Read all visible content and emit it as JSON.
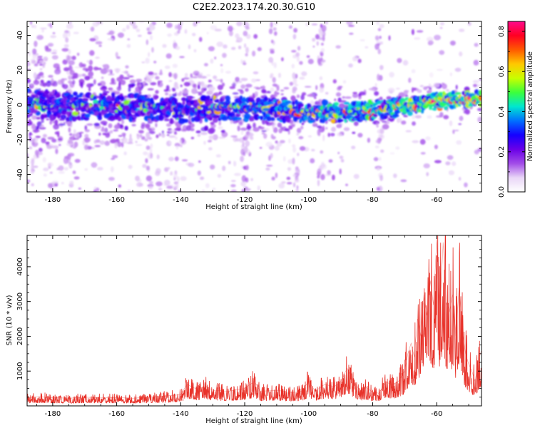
{
  "figure": {
    "title": "C2E2.2023.174.20.30.G10"
  },
  "chart_data": [
    {
      "type": "heatmap",
      "xlabel": "Height of straight line (km)",
      "ylabel": "Frequency (Hz)",
      "xlim": [
        -188,
        -46
      ],
      "ylim": [
        -50,
        48
      ],
      "x_ticks": [
        -180,
        -160,
        -140,
        -120,
        -100,
        -80,
        -60
      ],
      "x_tick_labels": [
        "-180",
        "-160",
        "-140",
        "-120",
        "-100",
        "-80",
        "-60"
      ],
      "y_ticks": [
        -40,
        -20,
        0,
        20,
        40
      ],
      "y_tick_labels": [
        "-40",
        "-20",
        "0",
        "20",
        "40"
      ],
      "colorbar": {
        "label": "Normalized spectral amplitude",
        "range": [
          0,
          0.85
        ],
        "ticks": [
          0.0,
          0.2,
          0.4,
          0.6,
          0.8
        ],
        "tick_labels": [
          "0.0",
          "0.2",
          "0.4",
          "0.6",
          "0.8"
        ],
        "colormap": [
          "#ffffff",
          "#e9d6f7",
          "#a24ce8",
          "#6a00e8",
          "#1500ff",
          "#0070ff",
          "#00e6d0",
          "#3cff3c",
          "#c8ff00",
          "#ffc800",
          "#ff5a00",
          "#ff0022",
          "#ff0a8c"
        ]
      },
      "ridge_centerline": [
        {
          "x": -188,
          "y": 1
        },
        {
          "x": -180,
          "y": 0
        },
        {
          "x": -170,
          "y": -1
        },
        {
          "x": -160,
          "y": -1
        },
        {
          "x": -150,
          "y": -2
        },
        {
          "x": -140,
          "y": -3
        },
        {
          "x": -130,
          "y": -2
        },
        {
          "x": -120,
          "y": -2
        },
        {
          "x": -110,
          "y": -3
        },
        {
          "x": -100,
          "y": -4
        },
        {
          "x": -90,
          "y": -4
        },
        {
          "x": -80,
          "y": -3
        },
        {
          "x": -70,
          "y": -1
        },
        {
          "x": -60,
          "y": 2
        },
        {
          "x": -50,
          "y": 3
        },
        {
          "x": -46,
          "y": 4
        }
      ]
    },
    {
      "type": "line",
      "xlabel": "Height of straight line (km)",
      "ylabel": "SNR (10 * v/v)",
      "xlim": [
        -188,
        -46
      ],
      "ylim": [
        0,
        4900
      ],
      "x_ticks": [
        -180,
        -160,
        -140,
        -120,
        -100,
        -80,
        -60
      ],
      "x_tick_labels": [
        "-180",
        "-160",
        "-140",
        "-120",
        "-100",
        "-80",
        "-60"
      ],
      "y_ticks": [
        1000,
        2000,
        3000,
        4000
      ],
      "y_tick_labels": [
        "1000",
        "2000",
        "3000",
        "4000"
      ],
      "series": [
        {
          "color": "#e8322a",
          "x": [
            -188,
            -185,
            -180,
            -175,
            -170,
            -165,
            -160,
            -155,
            -150,
            -145,
            -140,
            -138,
            -135,
            -132,
            -130,
            -125,
            -120,
            -117,
            -115,
            -110,
            -105,
            -102,
            -100,
            -98,
            -95,
            -92,
            -90,
            -88,
            -86,
            -84,
            -82,
            -80,
            -78,
            -76,
            -74,
            -72,
            -70,
            -69,
            -68,
            -67,
            -66,
            -65,
            -64,
            -63,
            -62,
            -61,
            -60,
            -59,
            -58,
            -57,
            -56,
            -55,
            -54,
            -53,
            -52,
            -51,
            -50,
            -49,
            -48,
            -47,
            -46
          ],
          "y": [
            230,
            260,
            240,
            220,
            250,
            230,
            240,
            220,
            250,
            280,
            320,
            620,
            480,
            560,
            450,
            420,
            500,
            700,
            420,
            450,
            380,
            430,
            720,
            420,
            620,
            550,
            700,
            1080,
            700,
            450,
            520,
            400,
            360,
            700,
            600,
            700,
            1000,
            1500,
            1800,
            1400,
            2500,
            2000,
            3200,
            2600,
            3600,
            2900,
            4800,
            2700,
            4700,
            3000,
            2700,
            3200,
            2000,
            3400,
            2200,
            1500,
            1200,
            1000,
            700,
            1300,
            1600
          ]
        }
      ]
    }
  ]
}
